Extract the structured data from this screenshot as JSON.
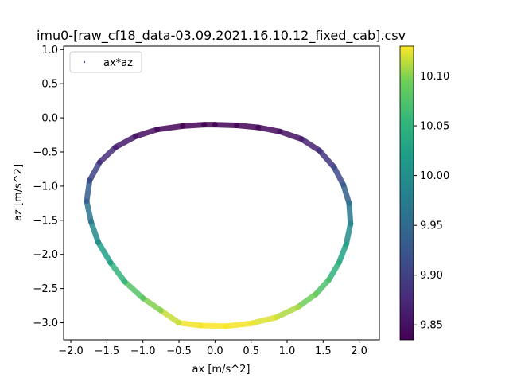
{
  "chart_data": {
    "type": "scatter",
    "title": "imu0-[raw_cf18_data-03.09.2021.16.10.12_fixed_cab].csv",
    "xlabel": "ax [m/s^2]",
    "ylabel": "az [m/s^2]",
    "xlim": [
      -2.1,
      2.28
    ],
    "ylim": [
      -3.25,
      1.05
    ],
    "xticks": [
      "−2.0",
      "−1.5",
      "−1.0",
      "−0.5",
      "0.0",
      "0.5",
      "1.0",
      "1.5",
      "2.0"
    ],
    "xtick_values": [
      -2.0,
      -1.5,
      -1.0,
      -0.5,
      0.0,
      0.5,
      1.0,
      1.5,
      2.0
    ],
    "yticks": [
      "−3.0",
      "−2.5",
      "−2.0",
      "−1.5",
      "−1.0",
      "−0.5",
      "0.0",
      "0.5",
      "1.0"
    ],
    "ytick_values": [
      -3.0,
      -2.5,
      -2.0,
      -1.5,
      -1.0,
      -0.5,
      0.0,
      0.5,
      1.0
    ],
    "legend": {
      "label": "ax*az",
      "placement": "top-left"
    },
    "colorbar": {
      "colormap": "viridis",
      "range": [
        9.835,
        10.13
      ],
      "ticks": [
        "9.85",
        "9.90",
        "9.95",
        "10.00",
        "10.05",
        "10.10"
      ],
      "tick_values": [
        9.85,
        9.9,
        9.95,
        10.0,
        10.05,
        10.1
      ]
    },
    "series": [
      {
        "points": [
          [
            0.0,
            -0.1
          ],
          [
            0.3,
            -0.11
          ],
          [
            0.6,
            -0.14
          ],
          [
            0.9,
            -0.2
          ],
          [
            1.2,
            -0.31
          ],
          [
            1.45,
            -0.48
          ],
          [
            1.65,
            -0.72
          ],
          [
            1.78,
            -0.98
          ],
          [
            1.86,
            -1.25
          ],
          [
            1.88,
            -1.55
          ],
          [
            1.82,
            -1.85
          ],
          [
            1.72,
            -2.12
          ],
          [
            1.58,
            -2.37
          ],
          [
            1.4,
            -2.58
          ],
          [
            1.15,
            -2.77
          ],
          [
            0.85,
            -2.92
          ],
          [
            0.5,
            -3.01
          ],
          [
            0.15,
            -3.05
          ],
          [
            -0.2,
            -3.04
          ],
          [
            -0.5,
            -3.0
          ],
          [
            -0.75,
            -2.82
          ],
          [
            -1.0,
            -2.64
          ],
          [
            -1.25,
            -2.4
          ],
          [
            -1.45,
            -2.12
          ],
          [
            -1.62,
            -1.82
          ],
          [
            -1.72,
            -1.52
          ],
          [
            -1.78,
            -1.22
          ],
          [
            -1.74,
            -0.92
          ],
          [
            -1.6,
            -0.65
          ],
          [
            -1.38,
            -0.43
          ],
          [
            -1.1,
            -0.27
          ],
          [
            -0.8,
            -0.17
          ],
          [
            -0.45,
            -0.12
          ],
          [
            -0.15,
            -0.1
          ],
          [
            0.0,
            -0.1
          ]
        ]
      }
    ]
  }
}
